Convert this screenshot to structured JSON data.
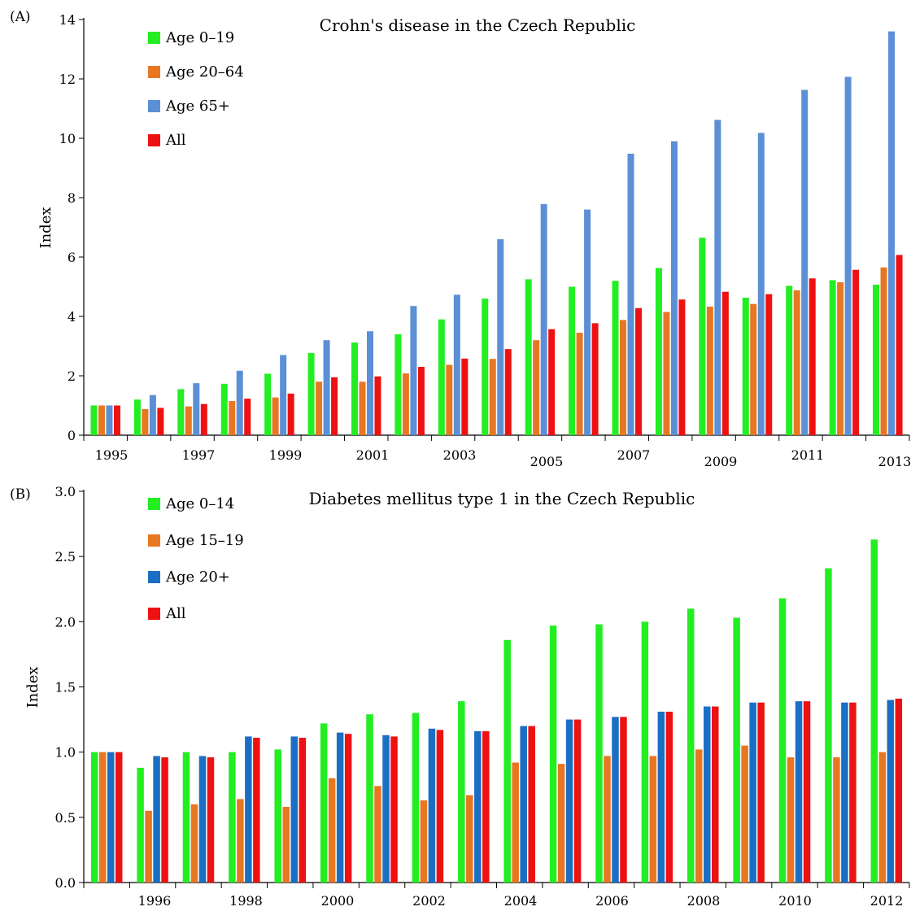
{
  "chart_data": [
    {
      "type": "bar",
      "panel_label": "(A)",
      "title": "Crohn's disease in the Czech Republic",
      "xlabel": "",
      "ylabel": "Index",
      "ylim": [
        0,
        14
      ],
      "yticks": [
        "0",
        "2",
        "4",
        "6",
        "8",
        "10",
        "12",
        "14"
      ],
      "categories": [
        "1995",
        "1996",
        "1997",
        "1998",
        "1999",
        "2000",
        "2001",
        "2002",
        "2003",
        "2004",
        "2005",
        "2006",
        "2007",
        "2008",
        "2009",
        "2010",
        "2011",
        "2012",
        "2013"
      ],
      "xtick_labels": [
        "1995",
        "1997",
        "1999",
        "2001",
        "2003",
        "2005",
        "2007",
        "2009",
        "2011",
        "2013"
      ],
      "legend_position": "top-left",
      "series": [
        {
          "name": "Age 0–19",
          "color": "#22ee22",
          "values": [
            1.0,
            1.2,
            1.55,
            1.73,
            2.07,
            2.77,
            3.12,
            3.4,
            3.9,
            4.6,
            5.25,
            5.0,
            5.2,
            5.63,
            6.65,
            4.63,
            5.03,
            5.22,
            5.07
          ]
        },
        {
          "name": "Age 20–64",
          "color": "#e87722",
          "values": [
            1.0,
            0.88,
            0.97,
            1.15,
            1.27,
            1.8,
            1.8,
            2.08,
            2.37,
            2.57,
            3.2,
            3.45,
            3.88,
            4.15,
            4.33,
            4.42,
            4.88,
            5.15,
            5.65
          ]
        },
        {
          "name": "Age 65+",
          "color": "#5b8fd6",
          "values": [
            1.0,
            1.35,
            1.75,
            2.17,
            2.7,
            3.2,
            3.5,
            4.35,
            4.73,
            6.6,
            7.78,
            7.6,
            9.48,
            9.9,
            10.62,
            10.18,
            11.63,
            12.07,
            13.6
          ]
        },
        {
          "name": "All",
          "color": "#ee1111",
          "values": [
            1.0,
            0.92,
            1.05,
            1.23,
            1.4,
            1.95,
            1.98,
            2.3,
            2.58,
            2.9,
            3.57,
            3.77,
            4.28,
            4.57,
            4.83,
            4.75,
            5.28,
            5.57,
            6.07
          ]
        }
      ]
    },
    {
      "type": "bar",
      "panel_label": "(B)",
      "title": "Diabetes mellitus type 1 in the Czech Republic",
      "xlabel": "",
      "ylabel": "Index",
      "ylim": [
        0,
        3.0
      ],
      "yticks": [
        "0.0",
        "0.5",
        "1.0",
        "1.5",
        "2.0",
        "2.5",
        "3.0"
      ],
      "categories": [
        "1995",
        "1996",
        "1997",
        "1998",
        "1999",
        "2000",
        "2001",
        "2002",
        "2003",
        "2004",
        "2005",
        "2006",
        "2007",
        "2008",
        "2009",
        "2010",
        "2011",
        "2012"
      ],
      "xtick_labels": [
        "1996",
        "1998",
        "2000",
        "2002",
        "2004",
        "2006",
        "2008",
        "2010",
        "2012"
      ],
      "legend_position": "top-left",
      "series": [
        {
          "name": "Age 0–14",
          "color": "#22ee22",
          "values": [
            1.0,
            0.88,
            1.0,
            1.0,
            1.02,
            1.22,
            1.29,
            1.3,
            1.39,
            1.86,
            1.97,
            1.98,
            2.0,
            2.1,
            2.03,
            2.18,
            2.41,
            2.63
          ]
        },
        {
          "name": "Age 15–19",
          "color": "#e87722",
          "values": [
            1.0,
            0.55,
            0.6,
            0.64,
            0.58,
            0.8,
            0.74,
            0.63,
            0.67,
            0.92,
            0.91,
            0.97,
            0.97,
            1.02,
            1.05,
            0.96,
            0.96,
            1.0
          ]
        },
        {
          "name": "Age 20+",
          "color": "#1a6fc4",
          "values": [
            1.0,
            0.97,
            0.97,
            1.12,
            1.12,
            1.15,
            1.13,
            1.18,
            1.16,
            1.2,
            1.25,
            1.27,
            1.31,
            1.35,
            1.38,
            1.39,
            1.38,
            1.4
          ]
        },
        {
          "name": "All",
          "color": "#ee1111",
          "values": [
            1.0,
            0.96,
            0.96,
            1.11,
            1.11,
            1.14,
            1.12,
            1.17,
            1.16,
            1.2,
            1.25,
            1.27,
            1.31,
            1.35,
            1.38,
            1.39,
            1.38,
            1.41
          ]
        }
      ]
    }
  ]
}
